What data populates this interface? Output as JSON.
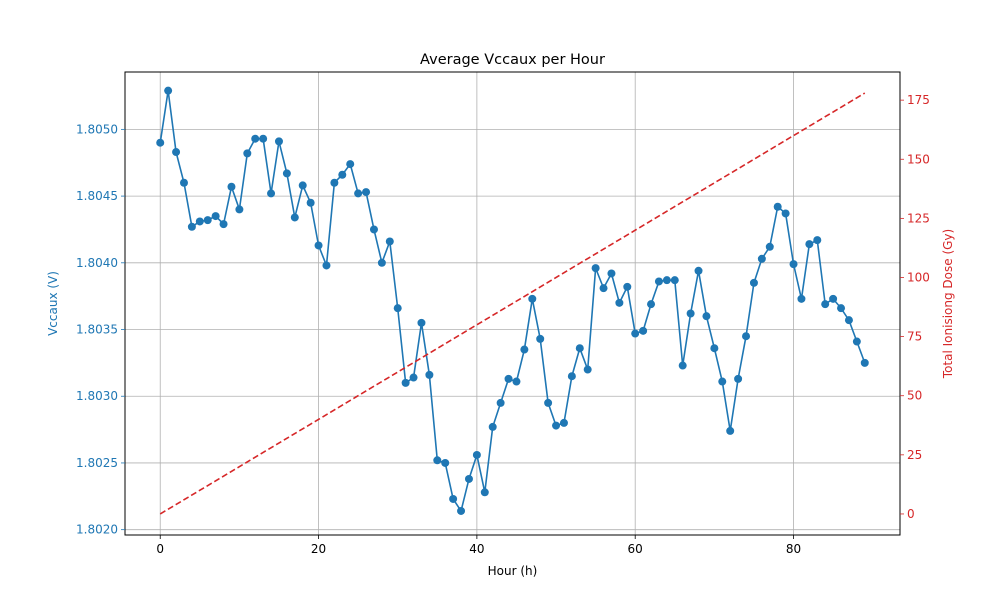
{
  "chart_data": {
    "type": "line",
    "title": "Average Vccaux per Hour",
    "xlabel": "Hour (h)",
    "ylabel": "Vccaux (V)",
    "y2label": "Total Ionisiong Dose (Gy)",
    "xlim": [
      -4.45,
      93.45
    ],
    "ylim": [
      1.80196,
      1.80543
    ],
    "y2lim": [
      -8.9,
      186.9
    ],
    "grid": true,
    "x_ticks": [
      0,
      20,
      40,
      60,
      80
    ],
    "y_ticks": [
      1.802,
      1.8025,
      1.803,
      1.8035,
      1.804,
      1.8045,
      1.805
    ],
    "y_tick_labels": [
      "1.8020",
      "1.8025",
      "1.8030",
      "1.8035",
      "1.8040",
      "1.8045",
      "1.8050"
    ],
    "y2_ticks": [
      0,
      25,
      50,
      75,
      100,
      125,
      150,
      175
    ],
    "colors": {
      "primary": "#1f77b4",
      "secondary": "#d62728",
      "grid": "#b0b0b0"
    },
    "series": [
      {
        "axis": "left",
        "style": "solid-markers",
        "x": [
          0,
          1,
          2,
          3,
          4,
          5,
          6,
          7,
          8,
          9,
          10,
          11,
          12,
          13,
          14,
          15,
          16,
          17,
          18,
          19,
          20,
          21,
          22,
          23,
          24,
          25,
          26,
          27,
          28,
          29,
          30,
          31,
          32,
          33,
          34,
          35,
          36,
          37,
          38,
          39,
          40,
          41,
          42,
          43,
          44,
          45,
          46,
          47,
          48,
          49,
          50,
          51,
          52,
          53,
          54,
          55,
          56,
          57,
          58,
          59,
          60,
          61,
          62,
          63,
          64,
          65,
          66,
          67,
          68,
          69,
          70,
          71,
          72,
          73,
          74,
          75,
          76,
          77,
          78,
          79,
          80,
          81,
          82,
          83,
          84,
          85,
          86,
          87,
          88,
          89
        ],
        "values": [
          1.8049,
          1.80529,
          1.80483,
          1.8046,
          1.80427,
          1.80431,
          1.80432,
          1.80435,
          1.80429,
          1.80457,
          1.8044,
          1.80482,
          1.80493,
          1.80493,
          1.80452,
          1.80491,
          1.80467,
          1.80434,
          1.80458,
          1.80445,
          1.80413,
          1.80398,
          1.8046,
          1.80466,
          1.80474,
          1.80452,
          1.80453,
          1.80425,
          1.804,
          1.80416,
          1.80366,
          1.8031,
          1.80314,
          1.80355,
          1.80316,
          1.80252,
          1.8025,
          1.80223,
          1.80214,
          1.80238,
          1.80256,
          1.80228,
          1.80277,
          1.80295,
          1.80313,
          1.80311,
          1.80335,
          1.80373,
          1.80343,
          1.80295,
          1.80278,
          1.8028,
          1.80315,
          1.80336,
          1.8032,
          1.80396,
          1.80381,
          1.80392,
          1.8037,
          1.80382,
          1.80347,
          1.80349,
          1.80369,
          1.80386,
          1.80387,
          1.80387,
          1.80323,
          1.80362,
          1.80394,
          1.8036,
          1.80336,
          1.80311,
          1.80274,
          1.80313,
          1.80345,
          1.80385,
          1.80403,
          1.80412,
          1.80442,
          1.80437,
          1.80399,
          1.80373,
          1.80414,
          1.80417,
          1.80369,
          1.80373,
          1.80366,
          1.80357,
          1.80341,
          1.80325
        ]
      },
      {
        "axis": "right",
        "style": "dashed",
        "x": [
          0,
          89
        ],
        "values": [
          0,
          178
        ]
      }
    ]
  }
}
